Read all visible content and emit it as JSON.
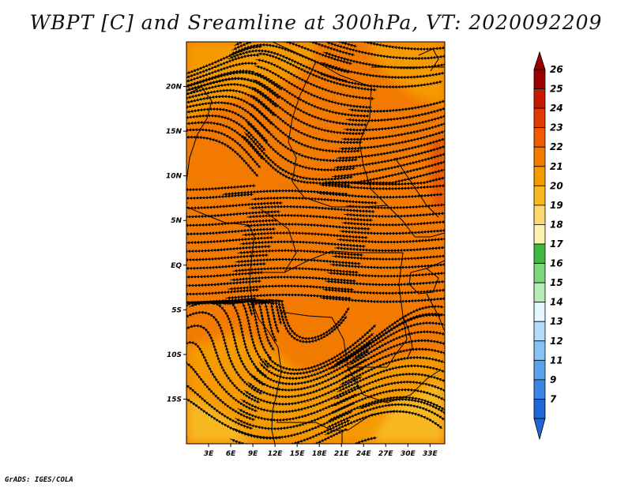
{
  "title": "WBPT [C] and Sreamline at 300hPa, VT: 2020092209",
  "credit": "GrADS: IGES/COLA",
  "chart_data": {
    "type": "map",
    "lon_range": [
      0,
      35
    ],
    "lat_range": [
      -20,
      25
    ],
    "lat_ticks": [
      {
        "value": 20,
        "label": "20N"
      },
      {
        "value": 15,
        "label": "15N"
      },
      {
        "value": 10,
        "label": "10N"
      },
      {
        "value": 5,
        "label": "5N"
      },
      {
        "value": 0,
        "label": "EQ"
      },
      {
        "value": -5,
        "label": "5S"
      },
      {
        "value": -10,
        "label": "10S"
      },
      {
        "value": -15,
        "label": "15S"
      }
    ],
    "lon_ticks": [
      {
        "value": 3,
        "label": "3E"
      },
      {
        "value": 6,
        "label": "6E"
      },
      {
        "value": 9,
        "label": "9E"
      },
      {
        "value": 12,
        "label": "12E"
      },
      {
        "value": 15,
        "label": "15E"
      },
      {
        "value": 18,
        "label": "18E"
      },
      {
        "value": 21,
        "label": "21E"
      },
      {
        "value": 24,
        "label": "24E"
      },
      {
        "value": 27,
        "label": "27E"
      },
      {
        "value": 30,
        "label": "30E"
      },
      {
        "value": 33,
        "label": "33E"
      }
    ],
    "colorbar": {
      "labels": [
        "26",
        "25",
        "24",
        "23",
        "22",
        "21",
        "20",
        "19",
        "18",
        "17",
        "16",
        "15",
        "14",
        "13",
        "12",
        "11",
        "9",
        "7"
      ],
      "colors": [
        "#9a0000",
        "#c41a00",
        "#e13a00",
        "#f05a00",
        "#f27a00",
        "#f59a00",
        "#f8b820",
        "#fcd870",
        "#fdf2b0",
        "#3fb83f",
        "#7cd67c",
        "#b6ecb6",
        "#e4f6ff",
        "#b4ddfb",
        "#86c2f5",
        "#5aa3ee",
        "#3a86e3",
        "#1f66d6"
      ],
      "top_color": "#9a0000",
      "bottom_color": "#1f66d6"
    },
    "fields": {
      "background_value": 22.5,
      "regions": [
        {
          "name": "northwest",
          "value": 21
        },
        {
          "name": "northeast",
          "value": 21
        },
        {
          "name": "south",
          "value": 21
        },
        {
          "name": "southwest-corner",
          "value": 20
        },
        {
          "name": "southeast-corner",
          "value": 20
        },
        {
          "name": "east-edge",
          "value": 23.5
        }
      ]
    }
  }
}
